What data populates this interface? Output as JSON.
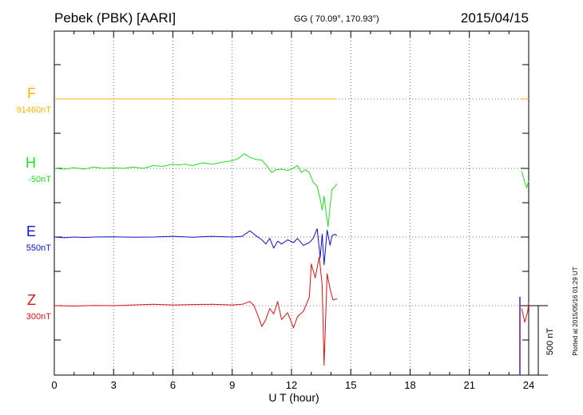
{
  "header": {
    "station": "Pebek (PBK)  [AARI]",
    "coords": "GG ( 70.09°, 170.93°)",
    "date": "2015/04/15"
  },
  "footer": {
    "plotted": "Plotted at 2015/05/16 01:29 UT"
  },
  "chart_data": {
    "type": "line",
    "title": "Pebek (PBK)  [AARI]",
    "xlabel": "U T (hour)",
    "xlim": [
      0,
      24
    ],
    "xticks": [
      "0",
      "3",
      "6",
      "9",
      "12",
      "15",
      "18",
      "21",
      "24"
    ],
    "grid": true,
    "scale_bar": {
      "label": "500 nT",
      "value": 500
    },
    "series": [
      {
        "name": "F",
        "baseline": "91460nT",
        "color": "#ffb400",
        "segments": [
          [
            [
              0,
              0
            ],
            [
              3,
              0
            ],
            [
              6,
              0
            ],
            [
              9,
              0
            ],
            [
              12,
              0
            ],
            [
              14.3,
              0
            ]
          ],
          [
            [
              23.6,
              0
            ],
            [
              24,
              0
            ]
          ]
        ]
      },
      {
        "name": "H",
        "baseline": "-50nT",
        "color": "#22dd22",
        "segments": [
          [
            [
              0,
              0
            ],
            [
              0.5,
              -5
            ],
            [
              1,
              5
            ],
            [
              1.5,
              -5
            ],
            [
              2,
              10
            ],
            [
              2.5,
              0
            ],
            [
              3,
              5
            ],
            [
              3.5,
              0
            ],
            [
              4,
              10
            ],
            [
              4.5,
              0
            ],
            [
              5,
              20
            ],
            [
              5.5,
              15
            ],
            [
              6,
              30
            ],
            [
              6.3,
              25
            ],
            [
              6.6,
              30
            ],
            [
              7,
              20
            ],
            [
              7.5,
              40
            ],
            [
              8,
              30
            ],
            [
              8.5,
              45
            ],
            [
              9,
              55
            ],
            [
              9.3,
              70
            ],
            [
              9.6,
              105
            ],
            [
              9.9,
              80
            ],
            [
              10.2,
              65
            ],
            [
              10.5,
              60
            ],
            [
              10.8,
              10
            ],
            [
              11,
              -30
            ],
            [
              11.2,
              -10
            ],
            [
              11.5,
              -5
            ],
            [
              11.8,
              -15
            ],
            [
              12,
              -5
            ],
            [
              12.3,
              20
            ],
            [
              12.5,
              -30
            ],
            [
              12.7,
              -10
            ],
            [
              12.9,
              -30
            ],
            [
              13.1,
              -100
            ],
            [
              13.3,
              -130
            ],
            [
              13.45,
              -220
            ],
            [
              13.55,
              -300
            ],
            [
              13.65,
              -200
            ],
            [
              13.75,
              -320
            ],
            [
              13.85,
              -420
            ],
            [
              13.95,
              -270
            ],
            [
              14.05,
              -150
            ],
            [
              14.15,
              -140
            ],
            [
              14.3,
              -110
            ]
          ],
          [
            [
              23.65,
              -20
            ],
            [
              23.8,
              -100
            ],
            [
              23.9,
              -140
            ],
            [
              24,
              -90
            ]
          ]
        ]
      },
      {
        "name": "E",
        "baseline": "550nT",
        "color": "#1111cc",
        "segments": [
          [
            [
              0,
              0
            ],
            [
              0.5,
              -5
            ],
            [
              1,
              0
            ],
            [
              1.5,
              -3
            ],
            [
              2,
              0
            ],
            [
              3,
              2
            ],
            [
              4,
              -2
            ],
            [
              5,
              0
            ],
            [
              6,
              5
            ],
            [
              7,
              -2
            ],
            [
              8,
              5
            ],
            [
              9,
              0
            ],
            [
              9.5,
              5
            ],
            [
              9.9,
              45
            ],
            [
              10.2,
              10
            ],
            [
              10.5,
              -20
            ],
            [
              10.7,
              -50
            ],
            [
              10.9,
              -10
            ],
            [
              11.1,
              -80
            ],
            [
              11.3,
              -30
            ],
            [
              11.5,
              -50
            ],
            [
              11.8,
              -20
            ],
            [
              12.1,
              -40
            ],
            [
              12.3,
              -10
            ],
            [
              12.6,
              -60
            ],
            [
              12.9,
              -40
            ],
            [
              13.1,
              -10
            ],
            [
              13.3,
              60
            ],
            [
              13.45,
              -150
            ],
            [
              13.55,
              20
            ],
            [
              13.65,
              -200
            ],
            [
              13.8,
              50
            ],
            [
              13.95,
              -60
            ],
            [
              14.05,
              10
            ],
            [
              14.2,
              20
            ],
            [
              14.3,
              10
            ]
          ]
        ]
      },
      {
        "name": "Z",
        "baseline": "300nT",
        "color": "#dd1111",
        "segments": [
          [
            [
              0,
              0
            ],
            [
              1,
              -3
            ],
            [
              2,
              2
            ],
            [
              3,
              0
            ],
            [
              4,
              5
            ],
            [
              5,
              10
            ],
            [
              6,
              5
            ],
            [
              7,
              8
            ],
            [
              8,
              10
            ],
            [
              9,
              5
            ],
            [
              9.5,
              10
            ],
            [
              9.9,
              30
            ],
            [
              10.1,
              0
            ],
            [
              10.3,
              -70
            ],
            [
              10.5,
              -150
            ],
            [
              10.7,
              -100
            ],
            [
              10.9,
              -20
            ],
            [
              11.1,
              -60
            ],
            [
              11.3,
              30
            ],
            [
              11.5,
              -100
            ],
            [
              11.8,
              -50
            ],
            [
              12.1,
              -160
            ],
            [
              12.3,
              -80
            ],
            [
              12.6,
              -40
            ],
            [
              12.9,
              60
            ],
            [
              13,
              300
            ],
            [
              13.2,
              200
            ],
            [
              13.4,
              350
            ],
            [
              13.55,
              150
            ],
            [
              13.65,
              -430
            ],
            [
              13.8,
              230
            ],
            [
              13.95,
              120
            ],
            [
              14.1,
              40
            ],
            [
              14.3,
              50
            ]
          ],
          [
            [
              23.65,
              -20
            ],
            [
              23.8,
              -120
            ],
            [
              23.95,
              -40
            ],
            [
              24,
              20
            ]
          ]
        ]
      }
    ]
  }
}
